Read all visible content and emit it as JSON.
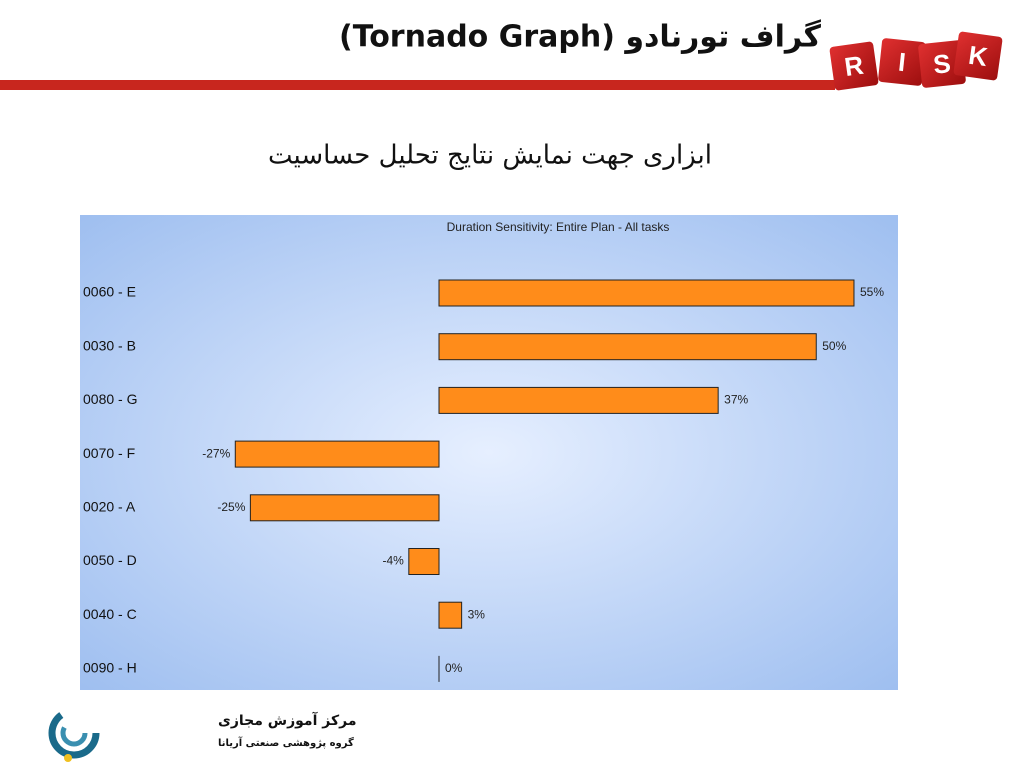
{
  "header": {
    "title": "گراف تورنادو (Tornado Graph)",
    "logo_letters": [
      "R",
      "I",
      "S",
      "K"
    ]
  },
  "subtitle": "ابزاری جهت نمایش نتایج تحلیل حساسیت",
  "chart_data": {
    "type": "bar",
    "orientation": "horizontal",
    "title": "Duration Sensitivity: Entire Plan - All tasks",
    "categories": [
      "0060 - E",
      "0030 - B",
      "0080 - G",
      "0070 - F",
      "0020 - A",
      "0050 - D",
      "0040 - C",
      "0090 - H"
    ],
    "values": [
      55,
      50,
      37,
      -27,
      -25,
      -4,
      3,
      0
    ],
    "value_labels": [
      "55%",
      "50%",
      "37%",
      "-27%",
      "-25%",
      "-4%",
      "3%",
      "0%"
    ],
    "color": "#ff8c1a"
  },
  "footer": {
    "org_name": "مرکز آموزش مجازی",
    "org_group": "گروه پژوهشی صنعتی آریانا"
  }
}
